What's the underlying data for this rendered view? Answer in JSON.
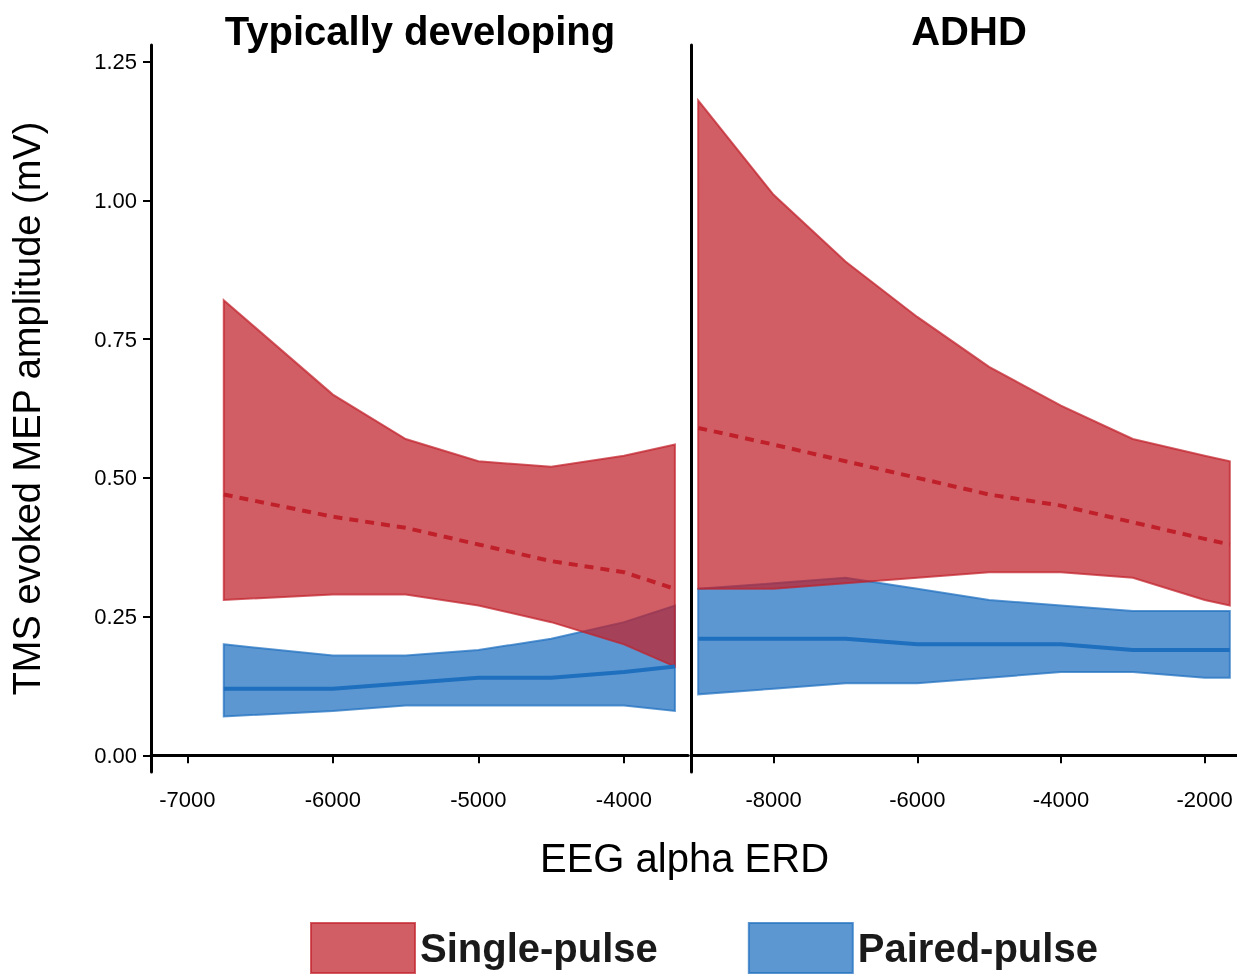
{
  "chart_data": [
    {
      "type": "line",
      "title": "Typically developing",
      "ylabel": "TMS evoked MEP amplitude (mV)",
      "xlim": [
        -7250,
        -3560
      ],
      "xticks": [
        -7000,
        -6000,
        -5000,
        -4000
      ],
      "ylim": [
        -0.03,
        1.28
      ],
      "yticks": [
        {
          "value": 0,
          "label": "0.00"
        },
        {
          "value": 0.25,
          "label": "0.25"
        },
        {
          "value": 0.5,
          "label": "0.50"
        },
        {
          "value": 0.75,
          "label": "0.75"
        },
        {
          "value": 1,
          "label": "1.00"
        },
        {
          "value": 1.25,
          "label": "1.25"
        }
      ],
      "grid": false,
      "legend": false,
      "marker": "none",
      "series": [
        {
          "color": "#c0202a",
          "line_style": "dashed",
          "x": [
            -6750,
            -6000,
            -5500,
            -5000,
            -4500,
            -4000,
            -3650
          ],
          "values": [
            0.47,
            0.43,
            0.41,
            0.38,
            0.35,
            0.33,
            0.3
          ],
          "upper": [
            0.82,
            0.65,
            0.57,
            0.53,
            0.52,
            0.54,
            0.56
          ],
          "lower": [
            0.28,
            0.29,
            0.29,
            0.27,
            0.24,
            0.2,
            0.16
          ]
        },
        {
          "color": "#1f6fbf",
          "line_style": "solid",
          "x": [
            -6750,
            -6000,
            -5500,
            -5000,
            -4500,
            -4000,
            -3650
          ],
          "values": [
            0.12,
            0.12,
            0.13,
            0.14,
            0.14,
            0.15,
            0.16
          ],
          "upper": [
            0.2,
            0.18,
            0.18,
            0.19,
            0.21,
            0.24,
            0.27
          ],
          "lower": [
            0.07,
            0.08,
            0.09,
            0.09,
            0.09,
            0.09,
            0.08
          ]
        }
      ]
    },
    {
      "type": "line",
      "title": "ADHD",
      "xlabel": "EEG alpha ERD",
      "xlim": [
        -9150,
        -1550
      ],
      "xticks": [
        -8000,
        -6000,
        -4000,
        -2000
      ],
      "ylim": [
        -0.03,
        1.28
      ],
      "tick_labels": "x",
      "grid": false,
      "legend": "bottom",
      "marker": "none",
      "series": [
        {
          "name": "Single-pulse",
          "color": "#c0202a",
          "line_style": "dashed",
          "x": [
            -9050,
            -8000,
            -7000,
            -6000,
            -5000,
            -4000,
            -3000,
            -2000,
            -1650
          ],
          "values": [
            0.59,
            0.56,
            0.53,
            0.5,
            0.47,
            0.45,
            0.42,
            0.39,
            0.38
          ],
          "upper": [
            1.18,
            1.01,
            0.89,
            0.79,
            0.7,
            0.63,
            0.57,
            0.54,
            0.53
          ],
          "lower": [
            0.3,
            0.3,
            0.31,
            0.32,
            0.33,
            0.33,
            0.32,
            0.28,
            0.27
          ]
        },
        {
          "name": "Paired-pulse",
          "color": "#1f6fbf",
          "line_style": "solid",
          "x": [
            -9050,
            -8000,
            -7000,
            -6000,
            -5000,
            -4000,
            -3000,
            -2000,
            -1650
          ],
          "values": [
            0.21,
            0.21,
            0.21,
            0.2,
            0.2,
            0.2,
            0.19,
            0.19,
            0.19
          ],
          "upper": [
            0.3,
            0.31,
            0.32,
            0.3,
            0.28,
            0.27,
            0.26,
            0.26,
            0.26
          ],
          "lower": [
            0.11,
            0.12,
            0.13,
            0.13,
            0.14,
            0.15,
            0.15,
            0.14,
            0.14
          ]
        }
      ]
    }
  ]
}
